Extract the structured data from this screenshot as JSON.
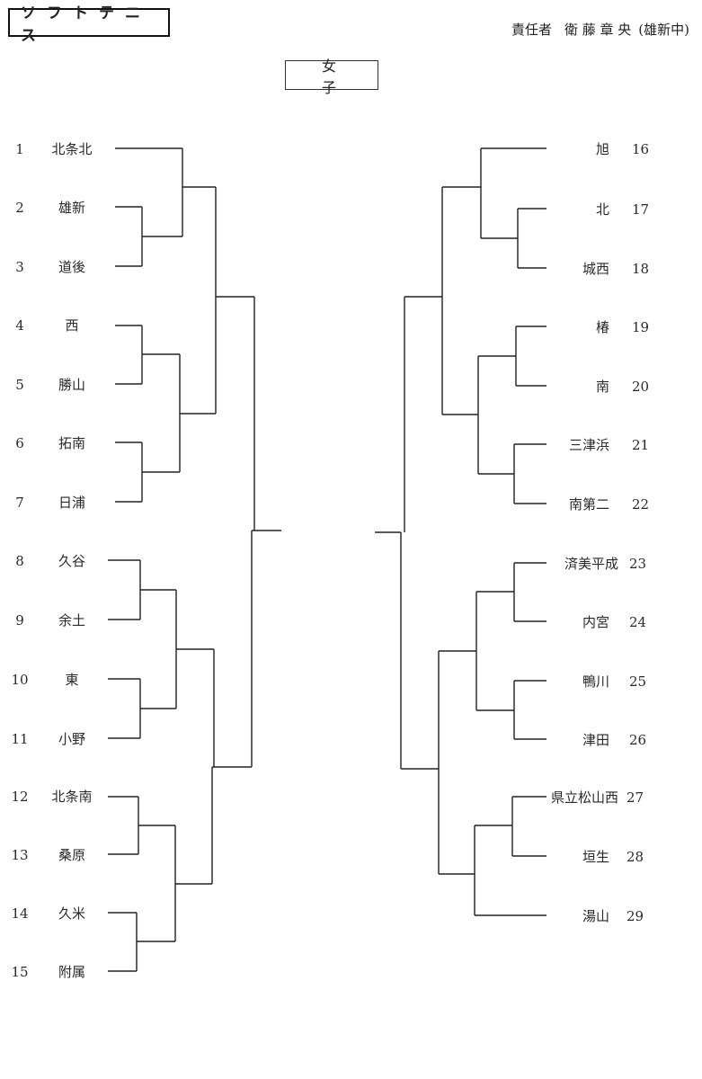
{
  "header": {
    "sport": "ソフトテニス",
    "responsible_label": "責任者",
    "responsible_name": "衛 藤 章 央",
    "school": "(雄新中)"
  },
  "division": "女子",
  "left_teams": [
    {
      "no": "1",
      "name": "北条北"
    },
    {
      "no": "2",
      "name": "雄新"
    },
    {
      "no": "3",
      "name": "道後"
    },
    {
      "no": "4",
      "name": "西"
    },
    {
      "no": "5",
      "name": "勝山"
    },
    {
      "no": "6",
      "name": "拓南"
    },
    {
      "no": "7",
      "name": "日浦"
    },
    {
      "no": "8",
      "name": "久谷"
    },
    {
      "no": "9",
      "name": "余土"
    },
    {
      "no": "10",
      "name": "東"
    },
    {
      "no": "11",
      "name": "小野"
    },
    {
      "no": "12",
      "name": "北条南"
    },
    {
      "no": "13",
      "name": "桑原"
    },
    {
      "no": "14",
      "name": "久米"
    },
    {
      "no": "15",
      "name": "附属"
    }
  ],
  "right_teams": [
    {
      "no": "16",
      "name": "旭"
    },
    {
      "no": "17",
      "name": "北"
    },
    {
      "no": "18",
      "name": "城西"
    },
    {
      "no": "19",
      "name": "椿"
    },
    {
      "no": "20",
      "name": "南"
    },
    {
      "no": "21",
      "name": "三津浜"
    },
    {
      "no": "22",
      "name": "南第二"
    },
    {
      "no": "23",
      "name": "済美平成"
    },
    {
      "no": "24",
      "name": "内宮"
    },
    {
      "no": "25",
      "name": "鴨川"
    },
    {
      "no": "26",
      "name": "津田"
    },
    {
      "no": "27",
      "name": "県立松山西"
    },
    {
      "no": "28",
      "name": "垣生"
    },
    {
      "no": "29",
      "name": "湯山"
    }
  ]
}
